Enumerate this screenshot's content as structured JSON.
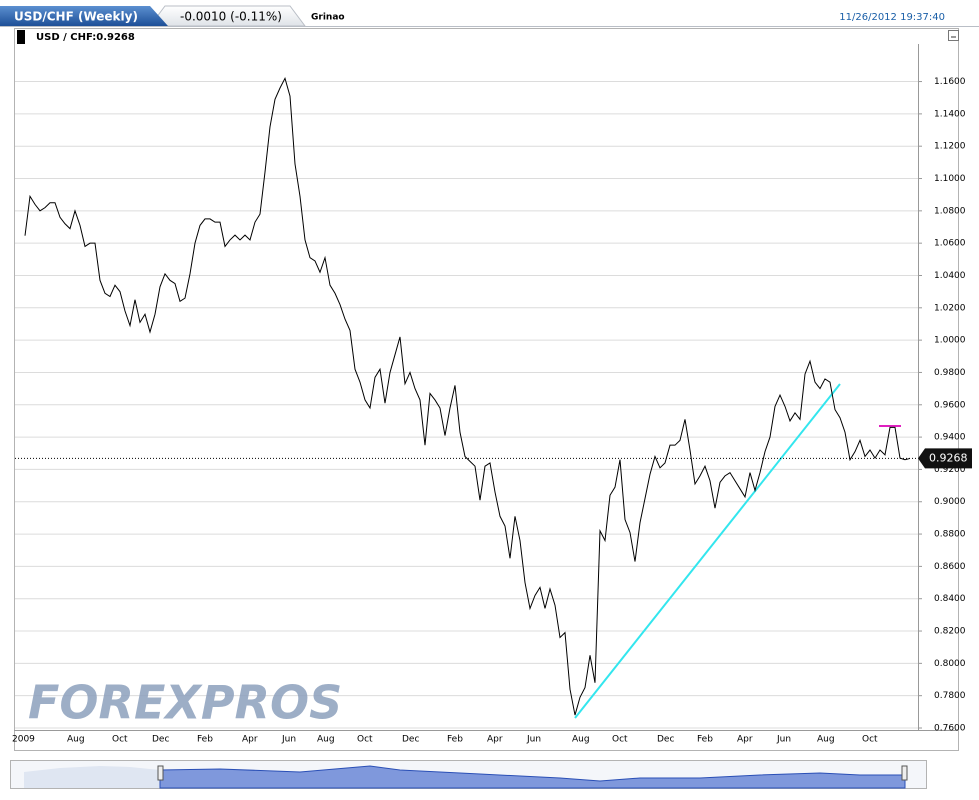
{
  "header": {
    "instrument": "USD/CHF (Weekly)",
    "change": "-0.0010 (-0.11%)",
    "user": "Grinao",
    "timestamp": "11/26/2012 19:37:40"
  },
  "watermark": "FOREXPROS",
  "chart_data": {
    "type": "line",
    "categories": [
      "2009",
      null,
      null,
      null,
      null,
      null,
      null,
      null,
      null,
      null,
      "Aug",
      null,
      null,
      null,
      null,
      null,
      null,
      null,
      null,
      "Oct",
      null,
      null,
      null,
      null,
      null,
      null,
      null,
      "Dec",
      null,
      null,
      null,
      null,
      null,
      null,
      null,
      null,
      "Feb",
      null,
      null,
      null,
      null,
      null,
      null,
      null,
      null,
      "Apr",
      null,
      null,
      null,
      null,
      null,
      null,
      null,
      "Jun",
      null,
      null,
      null,
      null,
      null,
      null,
      "Aug",
      null,
      null,
      null,
      null,
      null,
      null,
      null,
      "Oct",
      null,
      null,
      null,
      null,
      null,
      null,
      null,
      null,
      "Dec",
      null,
      null,
      null,
      null,
      null,
      null,
      null,
      null,
      "Feb",
      null,
      null,
      null,
      null,
      null,
      null,
      null,
      "Apr",
      null,
      null,
      null,
      null,
      null,
      null,
      null,
      "Jun",
      null,
      null,
      null,
      null,
      null,
      null,
      null,
      null,
      "Aug",
      null,
      null,
      null,
      null,
      null,
      null,
      null,
      "Oct",
      null,
      null,
      null,
      null,
      null,
      null,
      null,
      null,
      "Dec",
      null,
      null,
      null,
      null,
      null,
      null,
      null,
      "Feb",
      null,
      null,
      null,
      null,
      null,
      null,
      null,
      "Apr",
      null,
      null,
      null,
      null,
      null,
      null,
      null,
      "Jun",
      null,
      null,
      null,
      null,
      null,
      null,
      null,
      "Aug",
      null,
      null,
      null,
      null,
      null,
      null,
      null,
      null,
      "Oct",
      null,
      null,
      null,
      null,
      null,
      null,
      null,
      null
    ],
    "series": [
      {
        "name": "USD / CHF:0.9268",
        "color": "#000000",
        "values": [
          1.0646,
          1.089,
          1.084,
          1.08,
          1.082,
          1.085,
          1.085,
          1.076,
          1.072,
          1.069,
          1.08,
          1.071,
          1.058,
          1.06,
          1.06,
          1.037,
          1.029,
          1.027,
          1.034,
          1.03,
          1.018,
          1.009,
          1.025,
          1.011,
          1.016,
          1.005,
          1.016,
          1.033,
          1.041,
          1.037,
          1.035,
          1.024,
          1.026,
          1.041,
          1.06,
          1.071,
          1.075,
          1.075,
          1.073,
          1.073,
          1.058,
          1.062,
          1.065,
          1.062,
          1.065,
          1.062,
          1.073,
          1.078,
          1.104,
          1.132,
          1.149,
          1.156,
          1.162,
          1.151,
          1.109,
          1.089,
          1.062,
          1.051,
          1.049,
          1.042,
          1.051,
          1.034,
          1.029,
          1.022,
          1.013,
          1.006,
          0.982,
          0.974,
          0.963,
          0.958,
          0.977,
          0.982,
          0.961,
          0.98,
          0.991,
          1.002,
          0.973,
          0.98,
          0.97,
          0.963,
          0.935,
          0.967,
          0.963,
          0.958,
          0.941,
          0.958,
          0.972,
          0.943,
          0.928,
          0.925,
          0.922,
          0.901,
          0.922,
          0.924,
          0.906,
          0.891,
          0.885,
          0.865,
          0.891,
          0.876,
          0.85,
          0.834,
          0.842,
          0.847,
          0.834,
          0.846,
          0.836,
          0.816,
          0.819,
          0.784,
          0.768,
          0.779,
          0.785,
          0.805,
          0.788,
          0.882,
          0.876,
          0.904,
          0.909,
          0.926,
          0.889,
          0.881,
          0.863,
          0.887,
          0.902,
          0.917,
          0.928,
          0.921,
          0.924,
          0.935,
          0.935,
          0.938,
          0.951,
          0.932,
          0.911,
          0.916,
          0.922,
          0.913,
          0.896,
          0.912,
          0.916,
          0.918,
          0.913,
          0.908,
          0.903,
          0.918,
          0.907,
          0.918,
          0.931,
          0.94,
          0.959,
          0.966,
          0.959,
          0.95,
          0.955,
          0.951,
          0.979,
          0.987,
          0.974,
          0.97,
          0.976,
          0.974,
          0.957,
          0.952,
          0.943,
          0.926,
          0.931,
          0.938,
          0.928,
          0.932,
          0.927,
          0.932,
          0.929,
          0.946,
          0.946,
          0.927,
          0.926,
          0.9268
        ]
      }
    ],
    "ylim": [
      0.76,
      1.182
    ],
    "yticks": [
      {
        "value": 0.76,
        "label": "0.7600"
      },
      {
        "value": 0.78,
        "label": "0.7800"
      },
      {
        "value": 0.8,
        "label": "0.8000"
      },
      {
        "value": 0.82,
        "label": "0.8200"
      },
      {
        "value": 0.84,
        "label": "0.8400"
      },
      {
        "value": 0.86,
        "label": "0.8600"
      },
      {
        "value": 0.88,
        "label": "0.8800"
      },
      {
        "value": 0.9,
        "label": "0.9000"
      },
      {
        "value": 0.92,
        "label": "0.9200"
      },
      {
        "value": 0.94,
        "label": "0.9400"
      },
      {
        "value": 0.96,
        "label": "0.9600"
      },
      {
        "value": 0.98,
        "label": "0.9800"
      },
      {
        "value": 1.0,
        "label": "1.0000"
      },
      {
        "value": 1.02,
        "label": "1.0200"
      },
      {
        "value": 1.04,
        "label": "1.0400"
      },
      {
        "value": 1.06,
        "label": "1.0600"
      },
      {
        "value": 1.08,
        "label": "1.0800"
      },
      {
        "value": 1.1,
        "label": "1.1000"
      },
      {
        "value": 1.12,
        "label": "1.1200"
      },
      {
        "value": 1.14,
        "label": "1.1400"
      },
      {
        "value": 1.16,
        "label": "1.1600"
      }
    ],
    "grid": true
  }
}
